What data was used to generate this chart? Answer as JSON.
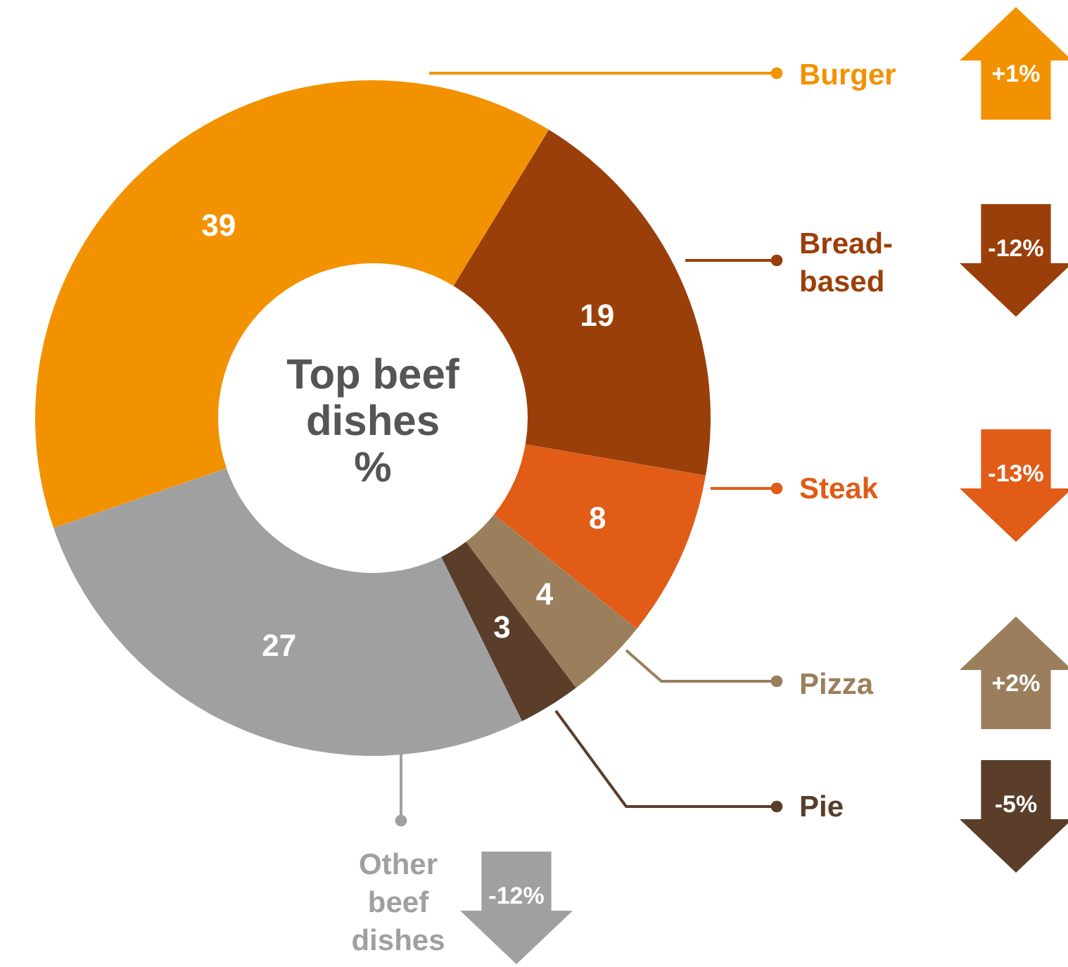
{
  "chart_data": {
    "type": "donut",
    "title": "Top beef dishes\n%",
    "categories": [
      "Burger",
      "Bread-based",
      "Steak",
      "Pizza",
      "Pie",
      "Other beef dishes"
    ],
    "values": [
      39,
      19,
      8,
      4,
      3,
      27
    ],
    "colors": [
      "#f39200",
      "#9a3f09",
      "#e05c17",
      "#9b7f5c",
      "#5a3e2a",
      "#a0a0a0"
    ],
    "data_labels": true,
    "annotations": [
      "+1%",
      "-12%",
      "-13%",
      "+2%",
      "-5%",
      "-12%"
    ],
    "legend": "right"
  }
}
